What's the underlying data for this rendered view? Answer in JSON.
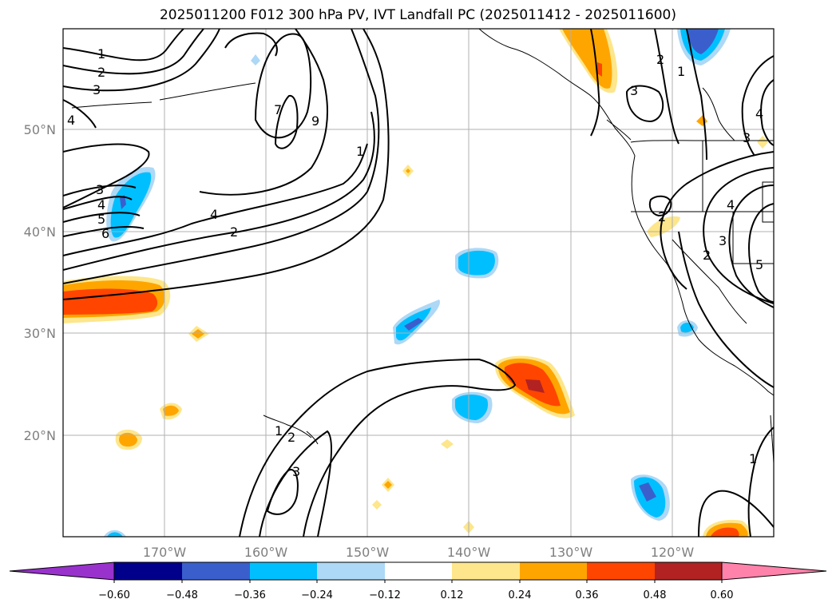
{
  "title": "2025011200 F012 300 hPa PV, IVT Landfall PC (2025011412 - 2025011600)",
  "map": {
    "lat_labels": [
      "50°N",
      "40°N",
      "30°N",
      "20°N"
    ],
    "lon_labels": [
      "170°W",
      "160°W",
      "150°W",
      "140°W",
      "130°W",
      "120°W"
    ],
    "contour_labels": [
      "1",
      "2",
      "3",
      "4",
      "5",
      "6",
      "7",
      "9",
      "1",
      "2",
      "4",
      "1",
      "2",
      "3",
      "1",
      "2",
      "3",
      "4",
      "5",
      "2",
      "3",
      "4",
      "5",
      "1",
      "1",
      "2",
      "3"
    ]
  },
  "colorbar": {
    "ticks": [
      "−0.60",
      "−0.48",
      "−0.36",
      "−0.24",
      "−0.12",
      "0.12",
      "0.24",
      "0.36",
      "0.48",
      "0.60"
    ],
    "colors": [
      "#9932cc",
      "#00008b",
      "#3a5fcd",
      "#00bfff",
      "#add8f6",
      "#ffffff",
      "#fde68b",
      "#ffa500",
      "#ff4500",
      "#b22222",
      "#ff82ab"
    ]
  }
}
